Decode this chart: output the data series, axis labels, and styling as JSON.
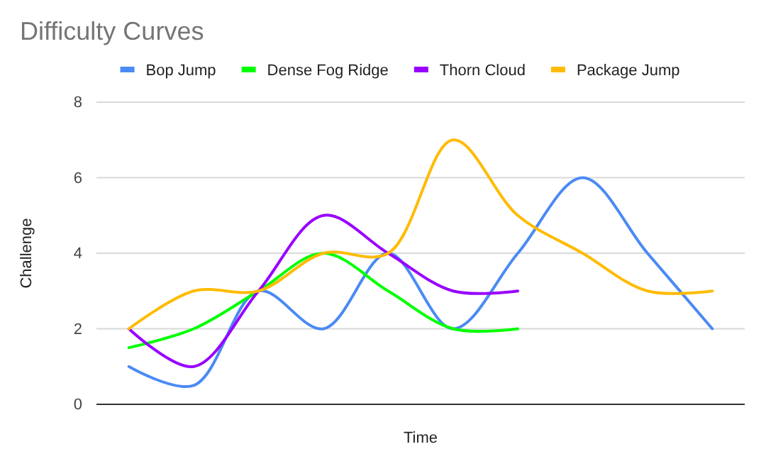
{
  "chart_data": {
    "type": "line",
    "title": "Difficulty Curves",
    "xlabel": "Time",
    "ylabel": "Challenge",
    "categories": [
      null,
      null,
      null,
      null,
      null,
      null,
      null,
      null,
      null,
      null
    ],
    "series": [
      {
        "name": "Bop Jump",
        "color": "#4a8af4",
        "values": [
          1,
          0.5,
          3,
          2,
          4,
          2,
          4,
          6,
          4,
          2
        ]
      },
      {
        "name": "Dense Fog Ridge",
        "color": "#00ff00",
        "values": [
          1.5,
          2,
          3,
          4,
          3,
          2,
          2,
          null,
          null,
          null
        ]
      },
      {
        "name": "Thorn Cloud",
        "color": "#9900ff",
        "values": [
          2,
          1,
          3,
          5,
          4,
          3,
          3,
          null,
          null,
          null
        ]
      },
      {
        "name": "Package Jump",
        "color": "#ffbb00",
        "values": [
          2,
          3,
          3,
          4,
          4,
          7,
          5,
          4,
          3,
          3
        ]
      }
    ],
    "ylim": [
      0,
      8
    ],
    "yticks": [
      0,
      2,
      4,
      6,
      8
    ],
    "grid": "y",
    "legend": "top",
    "marker": "none",
    "line_style": "solid"
  }
}
